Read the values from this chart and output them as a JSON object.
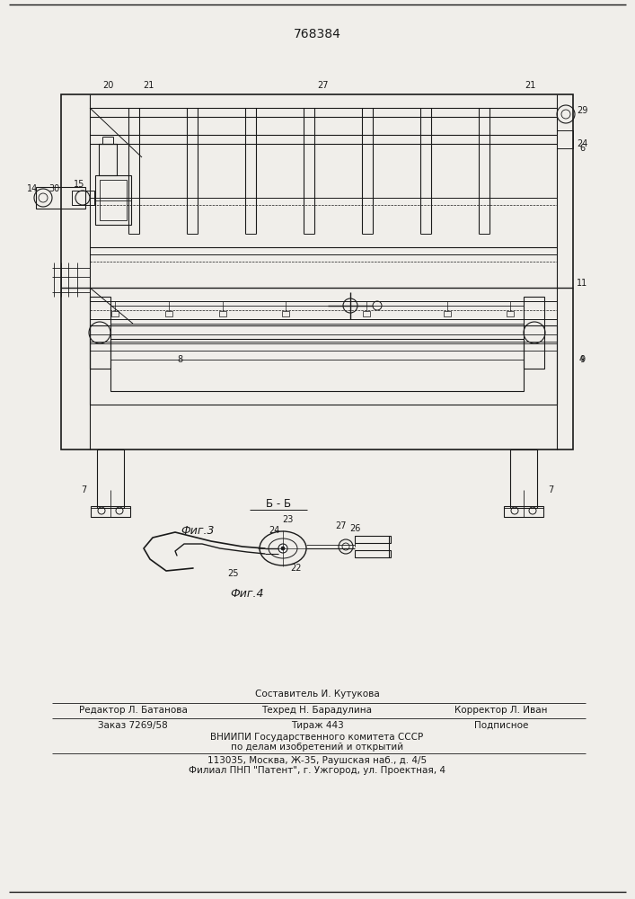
{
  "patent_number": "768384",
  "fig3_label": "Фиг.3",
  "fig4_label": "Фиг.4",
  "section_label": "Б - Б",
  "footer_line1": "Составитель И. Кутукова",
  "footer_line2_col1": "Редактор Л. Батанова",
  "footer_line2_col2": "Техред Н. Барадулина",
  "footer_line2_col3": "Корректор Л. Иван",
  "footer_line3_col1": "Заказ 7269/58",
  "footer_line3_col2": "Тираж 443",
  "footer_line3_col3": "Подписное",
  "footer_line4": "ВНИИПИ Государственного комитета СССР",
  "footer_line5": "по делам изобретений и открытий",
  "footer_line6": "113035, Москва, Ж-35, Раушская наб., д. 4/5",
  "footer_line7": "Филиал ПНП \"Патент\", г. Ужгород, ул. Проектная, 4",
  "bg_color": "#f0eeea",
  "line_color": "#1a1a1a"
}
